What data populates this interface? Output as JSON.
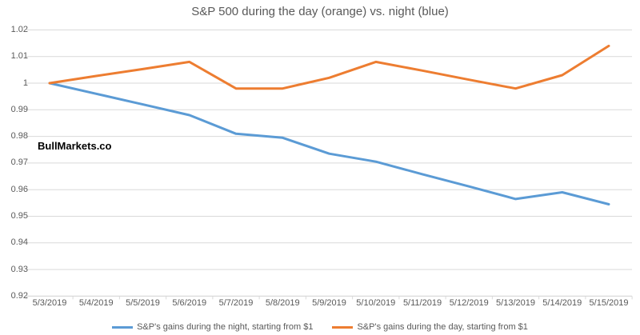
{
  "title": "S&P 500 during the day (orange) vs. night (blue)",
  "watermark": "BullMarkets.co",
  "colors": {
    "night_line": "#5B9BD5",
    "day_line": "#ED7D31",
    "gridline": "#D9D9D9",
    "axis_text": "#595959",
    "title_text": "#595959"
  },
  "legend": {
    "night_label": "S&P's gains during the night, starting from $1",
    "day_label": "S&P's gains during the day, starting from $1"
  },
  "chart_data": {
    "type": "line",
    "title": "S&P 500 during the day (orange) vs. night (blue)",
    "categories": [
      "5/3/2019",
      "5/4/2019",
      "5/5/2019",
      "5/6/2019",
      "5/7/2019",
      "5/8/2019",
      "5/9/2019",
      "5/10/2019",
      "5/11/2019",
      "5/12/2019",
      "5/13/2019",
      "5/14/2019",
      "5/15/2019"
    ],
    "series": [
      {
        "name": "S&P's gains during the night, starting from $1",
        "color": "#5B9BD5",
        "values": [
          1.0,
          0.996,
          0.992,
          0.988,
          0.981,
          0.9795,
          0.9735,
          0.9705,
          0.9658,
          0.9612,
          0.9565,
          0.959,
          0.9545
        ]
      },
      {
        "name": "S&P's gains during the day, starting from $1",
        "color": "#ED7D31",
        "values": [
          1.0,
          1.0027,
          1.0053,
          1.008,
          0.998,
          0.998,
          1.002,
          1.008,
          1.0047,
          1.0013,
          0.998,
          1.003,
          1.014
        ]
      }
    ],
    "xlabel": "",
    "ylabel": "",
    "ylim": [
      0.92,
      1.02
    ],
    "ytick_labels": [
      "0.92",
      "0.93",
      "0.94",
      "0.95",
      "0.96",
      "0.97",
      "0.98",
      "0.99",
      "1",
      "1.01",
      "1.02"
    ],
    "ytick_values": [
      0.92,
      0.93,
      0.94,
      0.95,
      0.96,
      0.97,
      0.98,
      0.99,
      1.0,
      1.01,
      1.02
    ],
    "grid": true,
    "legend_position": "bottom"
  }
}
